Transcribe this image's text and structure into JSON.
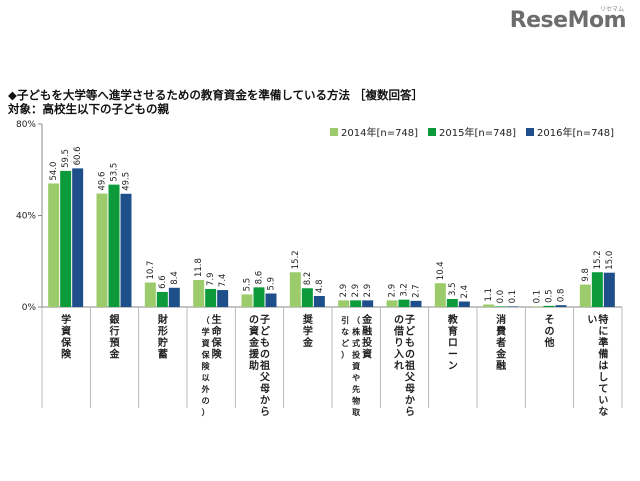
{
  "logo": {
    "text": "ReseMom",
    "sub": "リセマム"
  },
  "header": {
    "title": "◆子どもを大学等へ進学させるための教育資金を準備している方法 ［複数回答］",
    "subtitle": "対象：高校生以下の子どもの親"
  },
  "colors": {
    "2014": "#9ccb6b",
    "2015": "#0c9a3b",
    "2016": "#1f4f8a"
  },
  "chart_data": {
    "type": "bar",
    "title": "",
    "xlabel": "",
    "ylabel": "",
    "ylim": [
      0,
      80
    ],
    "ytick_labels": [
      "0%",
      "40%",
      "80%"
    ],
    "ytick_values": [
      0,
      40,
      80
    ],
    "grid": false,
    "legend_position": "top-right",
    "categories": [
      {
        "main": "学資保険",
        "sub": ""
      },
      {
        "main": "銀行預金",
        "sub": ""
      },
      {
        "main": "財形貯蓄",
        "sub": ""
      },
      {
        "main": "生命保険",
        "sub": "（学資保険以外の）"
      },
      {
        "main": "子どもの祖父母からの資金援助",
        "sub": ""
      },
      {
        "main": "奨学金",
        "sub": ""
      },
      {
        "main": "金融投資",
        "sub": "（株式投資や先物取引など）"
      },
      {
        "main": "子どもの祖父母からの借り入れ",
        "sub": ""
      },
      {
        "main": "教育ローン",
        "sub": ""
      },
      {
        "main": "消費者金融",
        "sub": ""
      },
      {
        "main": "その他",
        "sub": ""
      },
      {
        "main": "特に準備はしていない",
        "sub": ""
      }
    ],
    "series": [
      {
        "name": "2014年[n=748]",
        "values": [
          54.0,
          49.6,
          10.7,
          11.8,
          5.5,
          15.2,
          2.9,
          2.9,
          10.4,
          1.1,
          0.1,
          9.8
        ]
      },
      {
        "name": "2015年[n=748]",
        "values": [
          59.5,
          53.5,
          6.6,
          7.9,
          8.6,
          8.2,
          2.9,
          3.2,
          3.5,
          0.0,
          0.5,
          15.2
        ]
      },
      {
        "name": "2016年[n=748]",
        "values": [
          60.6,
          49.5,
          8.4,
          7.4,
          5.9,
          4.8,
          2.9,
          2.7,
          2.4,
          0.1,
          0.8,
          15.0
        ]
      }
    ]
  }
}
